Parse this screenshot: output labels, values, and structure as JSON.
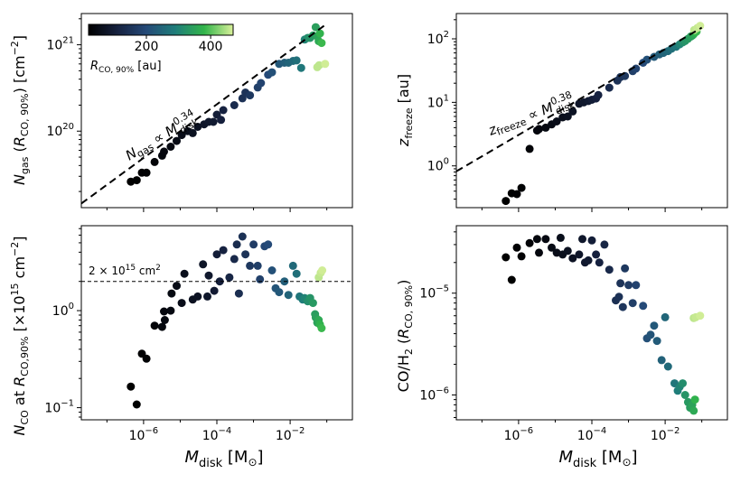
{
  "figure": {
    "colorbar": {
      "label": "R_CO, 90% [au]",
      "ticks": [
        200,
        400
      ],
      "range": [
        20,
        470
      ]
    },
    "x_axis_label": "M_disk [M_⊙]"
  },
  "chart_data": [
    {
      "type": "scatter",
      "panel": "top-left",
      "ylabel": "N_gas (R_CO, 90%) [cm^-2]",
      "xscale": "log",
      "yscale": "log",
      "xlim": [
        2e-08,
        0.5
      ],
      "ylim": [
        1.3e+19,
        2.3e+21
      ],
      "xticks": [
        1e-06,
        0.0001,
        0.01
      ],
      "xticklabels": [
        "",
        "",
        ""
      ],
      "yticks": [
        1e+20,
        1e+21
      ],
      "yticklabels": [
        "10^20",
        "10^21"
      ],
      "fit_line": {
        "label": "N_gas ∝ M_disk^0.34",
        "exponent": 0.34,
        "points": [
          [
            2e-08,
            1.45e+19
          ],
          [
            0.1,
            1.75e+21
          ]
        ]
      },
      "points": [
        {
          "x": 4.5e-07,
          "y": 2.6e+19,
          "r": 20
        },
        {
          "x": 6.5e-07,
          "y": 2.7e+19,
          "r": 22
        },
        {
          "x": 9e-07,
          "y": 3.3e+19,
          "r": 24
        },
        {
          "x": 1.2e-06,
          "y": 3.3e+19,
          "r": 26
        },
        {
          "x": 2e-06,
          "y": 4.4e+19,
          "r": 32
        },
        {
          "x": 3.2e-06,
          "y": 5.2e+19,
          "r": 38
        },
        {
          "x": 3.6e-06,
          "y": 5.8e+19,
          "r": 40
        },
        {
          "x": 5.5e-06,
          "y": 6.6e+19,
          "r": 44
        },
        {
          "x": 8e-06,
          "y": 7.7e+19,
          "r": 50
        },
        {
          "x": 1.1e-05,
          "y": 9e+19,
          "r": 55
        },
        {
          "x": 1.6e-05,
          "y": 1e+20,
          "r": 60
        },
        {
          "x": 2.2e-05,
          "y": 9.5e+19,
          "r": 65
        },
        {
          "x": 3e-05,
          "y": 1.12e+20,
          "r": 70
        },
        {
          "x": 4.5e-05,
          "y": 1.2e+20,
          "r": 78
        },
        {
          "x": 6e-05,
          "y": 1.28e+20,
          "r": 85
        },
        {
          "x": 8e-05,
          "y": 1.28e+20,
          "r": 90
        },
        {
          "x": 0.0001,
          "y": 1.55e+20,
          "r": 98
        },
        {
          "x": 0.00013,
          "y": 1.35e+20,
          "r": 105
        },
        {
          "x": 0.00015,
          "y": 1.75e+20,
          "r": 112
        },
        {
          "x": 0.0003,
          "y": 2e+20,
          "r": 130
        },
        {
          "x": 0.0005,
          "y": 2.4e+20,
          "r": 145
        },
        {
          "x": 0.0006,
          "y": 2.8e+20,
          "r": 150
        },
        {
          "x": 0.0008,
          "y": 2.6e+20,
          "r": 160
        },
        {
          "x": 0.0013,
          "y": 3.2e+20,
          "r": 175
        },
        {
          "x": 0.0016,
          "y": 3.6e+20,
          "r": 185
        },
        {
          "x": 0.0025,
          "y": 4.5e+20,
          "r": 200
        },
        {
          "x": 0.0032,
          "y": 4.8e+20,
          "r": 210
        },
        {
          "x": 0.005,
          "y": 6e+20,
          "r": 225
        },
        {
          "x": 0.007,
          "y": 6.2e+20,
          "r": 235
        },
        {
          "x": 0.009,
          "y": 6.2e+20,
          "r": 245
        },
        {
          "x": 0.012,
          "y": 6.5e+20,
          "r": 255
        },
        {
          "x": 0.015,
          "y": 6.6e+20,
          "r": 265
        },
        {
          "x": 0.02,
          "y": 5.4e+20,
          "r": 280
        },
        {
          "x": 0.025,
          "y": 1.15e+21,
          "r": 300
        },
        {
          "x": 0.03,
          "y": 1.2e+21,
          "r": 315
        },
        {
          "x": 0.035,
          "y": 1.2e+21,
          "r": 325
        },
        {
          "x": 0.042,
          "y": 1.28e+21,
          "r": 335
        },
        {
          "x": 0.05,
          "y": 1.6e+21,
          "r": 345
        },
        {
          "x": 0.055,
          "y": 1.25e+21,
          "r": 350
        },
        {
          "x": 0.06,
          "y": 1.1e+21,
          "r": 360
        },
        {
          "x": 0.065,
          "y": 1.35e+21,
          "r": 375
        },
        {
          "x": 0.072,
          "y": 1.05e+21,
          "r": 385
        },
        {
          "x": 0.055,
          "y": 5.5e+20,
          "r": 455
        },
        {
          "x": 0.062,
          "y": 5.8e+20,
          "r": 455
        },
        {
          "x": 0.09,
          "y": 6e+20,
          "r": 465
        }
      ]
    },
    {
      "type": "scatter",
      "panel": "top-right",
      "ylabel": "z_freeze [au]",
      "xscale": "log",
      "yscale": "log",
      "xlim": [
        2e-08,
        0.5
      ],
      "ylim": [
        0.22,
        250
      ],
      "xticks": [
        1e-06,
        0.0001,
        0.01
      ],
      "xticklabels": [
        "",
        "",
        ""
      ],
      "yticks": [
        1,
        10,
        100
      ],
      "yticklabels": [
        "10^0",
        "10^1",
        "10^2"
      ],
      "fit_line": {
        "label": "z_freeze ∝ M_disk^0.38",
        "exponent": 0.38,
        "points": [
          [
            2e-08,
            0.82
          ],
          [
            0.1,
            150
          ]
        ]
      },
      "points": [
        {
          "x": 4.5e-07,
          "y": 0.28,
          "r": 20
        },
        {
          "x": 6.5e-07,
          "y": 0.37,
          "r": 22
        },
        {
          "x": 9e-07,
          "y": 0.36,
          "r": 24
        },
        {
          "x": 1.2e-06,
          "y": 0.45,
          "r": 26
        },
        {
          "x": 2e-06,
          "y": 1.85,
          "r": 32
        },
        {
          "x": 3.2e-06,
          "y": 3.6,
          "r": 38
        },
        {
          "x": 3.6e-06,
          "y": 3.8,
          "r": 40
        },
        {
          "x": 5.5e-06,
          "y": 4.0,
          "r": 44
        },
        {
          "x": 8e-06,
          "y": 4.5,
          "r": 50
        },
        {
          "x": 1.1e-05,
          "y": 5.0,
          "r": 55
        },
        {
          "x": 1.6e-05,
          "y": 5.8,
          "r": 60
        },
        {
          "x": 2.2e-05,
          "y": 6.0,
          "r": 65
        },
        {
          "x": 3e-05,
          "y": 7.2,
          "r": 70
        },
        {
          "x": 4.5e-05,
          "y": 9.5,
          "r": 78
        },
        {
          "x": 6e-05,
          "y": 10.0,
          "r": 85
        },
        {
          "x": 8e-05,
          "y": 10.5,
          "r": 90
        },
        {
          "x": 0.0001,
          "y": 11.0,
          "r": 98
        },
        {
          "x": 0.00013,
          "y": 11.5,
          "r": 105
        },
        {
          "x": 0.00015,
          "y": 13.0,
          "r": 112
        },
        {
          "x": 0.0003,
          "y": 17,
          "r": 130
        },
        {
          "x": 0.0005,
          "y": 22,
          "r": 145
        },
        {
          "x": 0.0006,
          "y": 25,
          "r": 150
        },
        {
          "x": 0.0008,
          "y": 26,
          "r": 160
        },
        {
          "x": 0.0013,
          "y": 31,
          "r": 175
        },
        {
          "x": 0.0016,
          "y": 34,
          "r": 185
        },
        {
          "x": 0.0025,
          "y": 42,
          "r": 200
        },
        {
          "x": 0.0032,
          "y": 47,
          "r": 210
        },
        {
          "x": 0.005,
          "y": 52,
          "r": 225
        },
        {
          "x": 0.007,
          "y": 57,
          "r": 235
        },
        {
          "x": 0.009,
          "y": 60,
          "r": 245
        },
        {
          "x": 0.012,
          "y": 64,
          "r": 255
        },
        {
          "x": 0.015,
          "y": 70,
          "r": 265
        },
        {
          "x": 0.02,
          "y": 75,
          "r": 280
        },
        {
          "x": 0.025,
          "y": 82,
          "r": 300
        },
        {
          "x": 0.03,
          "y": 88,
          "r": 315
        },
        {
          "x": 0.035,
          "y": 92,
          "r": 325
        },
        {
          "x": 0.042,
          "y": 100,
          "r": 335
        },
        {
          "x": 0.05,
          "y": 108,
          "r": 345
        },
        {
          "x": 0.055,
          "y": 112,
          "r": 350
        },
        {
          "x": 0.06,
          "y": 118,
          "r": 360
        },
        {
          "x": 0.065,
          "y": 125,
          "r": 375
        },
        {
          "x": 0.072,
          "y": 130,
          "r": 385
        },
        {
          "x": 0.062,
          "y": 138,
          "r": 455
        },
        {
          "x": 0.075,
          "y": 148,
          "r": 460
        },
        {
          "x": 0.09,
          "y": 160,
          "r": 465
        }
      ]
    },
    {
      "type": "scatter",
      "panel": "bottom-left",
      "ylabel": "N_CO at R_CO,90% [×10^15 cm^-2]",
      "xlabel": "M_disk [M_⊙]",
      "xscale": "log",
      "yscale": "log",
      "xlim": [
        2e-08,
        0.5
      ],
      "ylim": [
        0.075,
        7.5
      ],
      "xticks": [
        1e-06,
        0.0001,
        0.01
      ],
      "xticklabels": [
        "10^-6",
        "10^-4",
        "10^-2"
      ],
      "yticks": [
        0.1,
        1
      ],
      "yticklabels": [
        "10^-1",
        "10^0"
      ],
      "reference_line": {
        "y": 2,
        "label": "2 × 10^15 cm^2"
      },
      "points": [
        {
          "x": 4.5e-07,
          "y": 0.165,
          "r": 20
        },
        {
          "x": 6.5e-07,
          "y": 0.108,
          "r": 22
        },
        {
          "x": 9e-07,
          "y": 0.36,
          "r": 24
        },
        {
          "x": 1.2e-06,
          "y": 0.32,
          "r": 26
        },
        {
          "x": 2e-06,
          "y": 0.7,
          "r": 32
        },
        {
          "x": 3.2e-06,
          "y": 0.68,
          "r": 38
        },
        {
          "x": 3.6e-06,
          "y": 0.98,
          "r": 40
        },
        {
          "x": 3.8e-06,
          "y": 0.8,
          "r": 41
        },
        {
          "x": 5.5e-06,
          "y": 1.0,
          "r": 44
        },
        {
          "x": 5.8e-06,
          "y": 1.5,
          "r": 46
        },
        {
          "x": 8e-06,
          "y": 1.8,
          "r": 50
        },
        {
          "x": 1.1e-05,
          "y": 1.2,
          "r": 55
        },
        {
          "x": 1.3e-05,
          "y": 2.4,
          "r": 58
        },
        {
          "x": 2.2e-05,
          "y": 1.3,
          "r": 65
        },
        {
          "x": 3e-05,
          "y": 1.4,
          "r": 70
        },
        {
          "x": 4.2e-05,
          "y": 3.0,
          "r": 76
        },
        {
          "x": 5.5e-05,
          "y": 1.4,
          "r": 82
        },
        {
          "x": 6e-05,
          "y": 2.3,
          "r": 85
        },
        {
          "x": 8.5e-05,
          "y": 1.6,
          "r": 92
        },
        {
          "x": 0.0001,
          "y": 3.8,
          "r": 98
        },
        {
          "x": 0.00012,
          "y": 2.0,
          "r": 103
        },
        {
          "x": 0.00015,
          "y": 4.2,
          "r": 112
        },
        {
          "x": 0.00022,
          "y": 2.2,
          "r": 120
        },
        {
          "x": 0.0003,
          "y": 3.4,
          "r": 128
        },
        {
          "x": 0.00035,
          "y": 4.8,
          "r": 134
        },
        {
          "x": 0.0004,
          "y": 1.5,
          "r": 138
        },
        {
          "x": 0.0005,
          "y": 5.8,
          "r": 145
        },
        {
          "x": 0.0006,
          "y": 3.8,
          "r": 150
        },
        {
          "x": 0.0008,
          "y": 2.9,
          "r": 160
        },
        {
          "x": 0.001,
          "y": 4.8,
          "r": 168
        },
        {
          "x": 0.0013,
          "y": 2.9,
          "r": 175
        },
        {
          "x": 0.0015,
          "y": 2.1,
          "r": 180
        },
        {
          "x": 0.002,
          "y": 4.6,
          "r": 192
        },
        {
          "x": 0.0025,
          "y": 4.8,
          "r": 200
        },
        {
          "x": 0.0032,
          "y": 2.6,
          "r": 210
        },
        {
          "x": 0.004,
          "y": 1.7,
          "r": 218
        },
        {
          "x": 0.005,
          "y": 1.55,
          "r": 225
        },
        {
          "x": 0.007,
          "y": 2.0,
          "r": 235
        },
        {
          "x": 0.009,
          "y": 1.45,
          "r": 245
        },
        {
          "x": 0.012,
          "y": 2.9,
          "r": 255
        },
        {
          "x": 0.015,
          "y": 2.4,
          "r": 265
        },
        {
          "x": 0.018,
          "y": 1.4,
          "r": 275
        },
        {
          "x": 0.022,
          "y": 1.3,
          "r": 290
        },
        {
          "x": 0.025,
          "y": 1.35,
          "r": 300
        },
        {
          "x": 0.03,
          "y": 1.25,
          "r": 315
        },
        {
          "x": 0.035,
          "y": 1.35,
          "r": 325
        },
        {
          "x": 0.042,
          "y": 1.2,
          "r": 335
        },
        {
          "x": 0.048,
          "y": 0.92,
          "r": 340
        },
        {
          "x": 0.05,
          "y": 0.85,
          "r": 345
        },
        {
          "x": 0.055,
          "y": 0.75,
          "r": 350
        },
        {
          "x": 0.06,
          "y": 0.8,
          "r": 360
        },
        {
          "x": 0.065,
          "y": 0.72,
          "r": 375
        },
        {
          "x": 0.072,
          "y": 0.66,
          "r": 385
        },
        {
          "x": 0.06,
          "y": 2.2,
          "r": 455
        },
        {
          "x": 0.068,
          "y": 2.45,
          "r": 460
        },
        {
          "x": 0.075,
          "y": 2.6,
          "r": 465
        }
      ]
    },
    {
      "type": "scatter",
      "panel": "bottom-right",
      "ylabel": "CO/H_2 (R_CO, 90%)",
      "xlabel": "M_disk [M_⊙]",
      "xscale": "log",
      "yscale": "log",
      "xlim": [
        2e-08,
        0.5
      ],
      "ylim": [
        5.7e-07,
        4.6e-05
      ],
      "xticks": [
        1e-06,
        0.0001,
        0.01
      ],
      "xticklabels": [
        "10^-6",
        "10^-4",
        "10^-2"
      ],
      "yticks": [
        1e-06,
        1e-05
      ],
      "yticklabels": [
        "10^-6",
        "10^-5"
      ],
      "points": [
        {
          "x": 4.5e-07,
          "y": 2.25e-05,
          "r": 20
        },
        {
          "x": 6.5e-07,
          "y": 1.35e-05,
          "r": 22
        },
        {
          "x": 9e-07,
          "y": 2.8e-05,
          "r": 24
        },
        {
          "x": 1.2e-06,
          "y": 2.3e-05,
          "r": 26
        },
        {
          "x": 2e-06,
          "y": 3.1e-05,
          "r": 32
        },
        {
          "x": 3.2e-06,
          "y": 3.4e-05,
          "r": 38
        },
        {
          "x": 3.6e-06,
          "y": 2.5e-05,
          "r": 40
        },
        {
          "x": 5.5e-06,
          "y": 3.4e-05,
          "r": 44
        },
        {
          "x": 8e-06,
          "y": 2.8e-05,
          "r": 50
        },
        {
          "x": 1.1e-05,
          "y": 2.5e-05,
          "r": 55
        },
        {
          "x": 1.4e-05,
          "y": 3.5e-05,
          "r": 58
        },
        {
          "x": 1.6e-05,
          "y": 2.4e-05,
          "r": 60
        },
        {
          "x": 2.2e-05,
          "y": 2.6e-05,
          "r": 65
        },
        {
          "x": 3e-05,
          "y": 2.2e-05,
          "r": 70
        },
        {
          "x": 4.5e-05,
          "y": 2.4e-05,
          "r": 78
        },
        {
          "x": 5.5e-05,
          "y": 3.4e-05,
          "r": 82
        },
        {
          "x": 6.5e-05,
          "y": 2e-05,
          "r": 86
        },
        {
          "x": 8e-05,
          "y": 2.1e-05,
          "r": 90
        },
        {
          "x": 0.0001,
          "y": 3.3e-05,
          "r": 98
        },
        {
          "x": 0.00013,
          "y": 2.4e-05,
          "r": 105
        },
        {
          "x": 0.00016,
          "y": 2e-05,
          "r": 112
        },
        {
          "x": 0.00022,
          "y": 3e-05,
          "r": 120
        },
        {
          "x": 0.0003,
          "y": 1.7e-05,
          "r": 128
        },
        {
          "x": 0.00045,
          "y": 8.5e-06,
          "r": 140
        },
        {
          "x": 0.00055,
          "y": 9.2e-06,
          "r": 146
        },
        {
          "x": 0.0006,
          "y": 1.25e-05,
          "r": 150
        },
        {
          "x": 0.0007,
          "y": 7.3e-06,
          "r": 155
        },
        {
          "x": 0.0008,
          "y": 1.75e-05,
          "r": 160
        },
        {
          "x": 0.001,
          "y": 1.2e-05,
          "r": 168
        },
        {
          "x": 0.0013,
          "y": 8e-06,
          "r": 175
        },
        {
          "x": 0.0016,
          "y": 1.2e-05,
          "r": 185
        },
        {
          "x": 0.0025,
          "y": 7.5e-06,
          "r": 200
        },
        {
          "x": 0.0032,
          "y": 3.6e-06,
          "r": 210
        },
        {
          "x": 0.004,
          "y": 3.9e-06,
          "r": 218
        },
        {
          "x": 0.005,
          "y": 4.8e-06,
          "r": 225
        },
        {
          "x": 0.006,
          "y": 3.4e-06,
          "r": 230
        },
        {
          "x": 0.008,
          "y": 2.2e-06,
          "r": 240
        },
        {
          "x": 0.01,
          "y": 5.8e-06,
          "r": 250
        },
        {
          "x": 0.012,
          "y": 1.9e-06,
          "r": 255
        },
        {
          "x": 0.018,
          "y": 1.3e-06,
          "r": 275
        },
        {
          "x": 0.022,
          "y": 1.1e-06,
          "r": 290
        },
        {
          "x": 0.025,
          "y": 1.2e-06,
          "r": 300
        },
        {
          "x": 0.03,
          "y": 1.3e-06,
          "r": 315
        },
        {
          "x": 0.035,
          "y": 1e-06,
          "r": 325
        },
        {
          "x": 0.042,
          "y": 8.5e-07,
          "r": 335
        },
        {
          "x": 0.048,
          "y": 7.5e-07,
          "r": 340
        },
        {
          "x": 0.055,
          "y": 8e-07,
          "r": 350
        },
        {
          "x": 0.06,
          "y": 7e-07,
          "r": 360
        },
        {
          "x": 0.065,
          "y": 9e-07,
          "r": 375
        },
        {
          "x": 0.06,
          "y": 5.7e-06,
          "r": 455
        },
        {
          "x": 0.068,
          "y": 5.8e-06,
          "r": 460
        },
        {
          "x": 0.09,
          "y": 6e-06,
          "r": 465
        }
      ]
    }
  ]
}
